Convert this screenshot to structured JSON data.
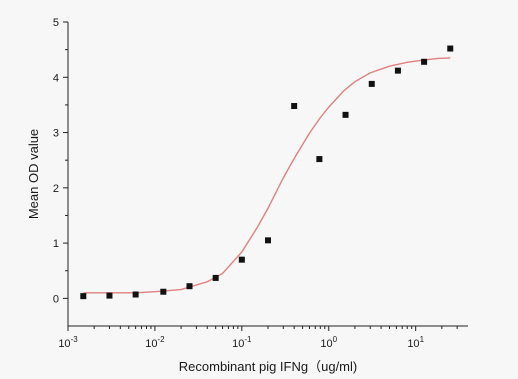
{
  "chart_data": {
    "type": "scatter",
    "title": "",
    "xlabel": "Recombinant pig  IFNg（ug/ml)",
    "ylabel": "Mean OD value",
    "x_scale": "log10",
    "xlim": [
      0.001,
      40
    ],
    "ylim": [
      -0.5,
      5
    ],
    "x_ticks": [
      {
        "value": 0.001,
        "base": "10",
        "exp": "-3"
      },
      {
        "value": 0.01,
        "base": "10",
        "exp": "-2"
      },
      {
        "value": 0.1,
        "base": "10",
        "exp": "-1"
      },
      {
        "value": 1,
        "base": "10",
        "exp": "0"
      },
      {
        "value": 10,
        "base": "10",
        "exp": "1"
      }
    ],
    "y_ticks": [
      0,
      1,
      2,
      3,
      4,
      5
    ],
    "grid": false,
    "legend": "none",
    "series": [
      {
        "type": "scatter",
        "color": "#111111",
        "marker": "square",
        "x": [
          0.0015,
          0.003,
          0.006,
          0.0125,
          0.025,
          0.05,
          0.1,
          0.2,
          0.4,
          0.78,
          1.56,
          3.125,
          6.25,
          12.5,
          25
        ],
        "y": [
          0.04,
          0.05,
          0.07,
          0.12,
          0.22,
          0.37,
          0.7,
          1.05,
          3.48,
          2.52,
          3.32,
          3.88,
          4.12,
          4.28,
          4.52
        ]
      },
      {
        "type": "line",
        "color": "#e08080",
        "x": [
          0.0015,
          0.003,
          0.006,
          0.01,
          0.02,
          0.04,
          0.06,
          0.1,
          0.15,
          0.2,
          0.3,
          0.4,
          0.6,
          0.8,
          1.0,
          1.5,
          2.0,
          3.0,
          5.0,
          8.0,
          12.0,
          18.0,
          25.0
        ],
        "y": [
          0.1,
          0.1,
          0.1,
          0.12,
          0.16,
          0.3,
          0.45,
          0.84,
          1.28,
          1.63,
          2.18,
          2.53,
          2.99,
          3.27,
          3.46,
          3.76,
          3.92,
          4.08,
          4.2,
          4.27,
          4.31,
          4.34,
          4.35
        ]
      }
    ]
  }
}
